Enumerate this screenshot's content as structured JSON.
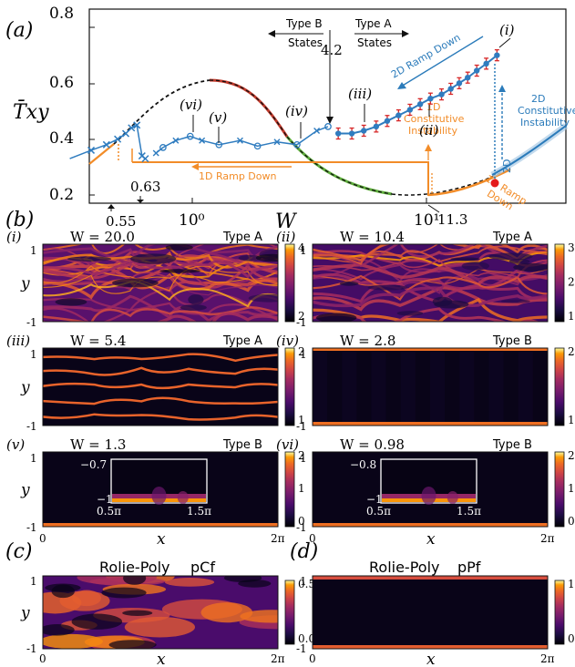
{
  "colors": {
    "orange": "#f28c28",
    "blue": "#2f7cbf",
    "red": "#d62728",
    "green": "#5fae3c",
    "darkred": "#c0392b",
    "black_dash": "#111111",
    "instab_blue": "#2b7bba"
  },
  "panel_a": {
    "label": "(a)",
    "ylabel": "T̄xy",
    "xlabel": "W",
    "y_ticks": [
      "0.2",
      "0.4",
      "0.6",
      "0.8"
    ],
    "x_ticks": [
      "10⁰",
      "10¹"
    ],
    "annot_063": "0.63",
    "annot_055": "0.55",
    "annot_42": "4.2",
    "annot_113": "11.3",
    "typeB_line1": "Type B",
    "typeB_line2": "States",
    "typeA_line1": "Type A",
    "typeA_line2": "States",
    "ramp2d": "2D Ramp Down",
    "constit2d_1": "2D",
    "constit2d_2": "Constitutive",
    "constit2d_3": "Instability",
    "constit1d_1": "1D",
    "constit1d_2": "Constitutive",
    "constit1d_3": "Instability",
    "ramp1d": "1D Ramp Down",
    "ramp1d_b1": "1D Ramp",
    "ramp1d_b2": "Down",
    "markers": [
      "(i)",
      "(ii)",
      "(iii)",
      "(iv)",
      "(v)",
      "(vi)"
    ]
  },
  "chart_data": {
    "type": "line",
    "x_scale": "log",
    "ylim": [
      0.2,
      0.9
    ],
    "xlabel": "W",
    "ylabel": "T̄xy",
    "series": [
      {
        "name": "2D Ramp Down",
        "x": [
          20.0,
          18.0,
          16.4,
          15.0,
          13.8,
          12.7,
          11.6,
          10.4,
          9.4,
          8.5,
          7.6,
          6.8,
          6.1,
          5.4,
          4.8,
          4.2
        ],
        "y": [
          0.7,
          0.67,
          0.645,
          0.62,
          0.6,
          0.58,
          0.56,
          0.545,
          0.525,
          0.505,
          0.485,
          0.465,
          0.445,
          0.43,
          0.42,
          0.42
        ]
      },
      {
        "name": "Type B",
        "x": [
          3.8,
          3.4,
          2.8,
          2.3,
          1.9,
          1.6,
          1.3,
          1.1,
          0.98,
          0.85,
          0.75,
          0.7
        ],
        "y": [
          0.445,
          0.43,
          0.38,
          0.39,
          0.375,
          0.395,
          0.38,
          0.395,
          0.41,
          0.395,
          0.37,
          0.35
        ]
      },
      {
        "name": "1D Ramp Down",
        "x": [
          0.3,
          0.37,
          0.43,
          0.48,
          0.52,
          0.55,
          0.58,
          0.61,
          0.63
        ],
        "y": [
          0.33,
          0.36,
          0.38,
          0.4,
          0.42,
          0.44,
          0.45,
          0.34,
          0.33
        ]
      },
      {
        "name": "1D Constitutive Instability",
        "x": [
          11.3
        ],
        "y": [
          0.33
        ]
      },
      {
        "name": "2D Constitutive Instability",
        "x": [
          20.0
        ],
        "y": [
          0.27
        ]
      }
    ]
  },
  "panel_b": {
    "label": "(b)",
    "heatmaps": [
      {
        "id": "i",
        "tag": "(i)",
        "w": "W = 20.0",
        "type": "Type A",
        "cb": [
          "4",
          "2"
        ],
        "pattern": "turb",
        "vmax": 4.5
      },
      {
        "id": "ii",
        "tag": "(ii)",
        "w": "W = 10.4",
        "type": "Type A",
        "cb": [
          "3",
          "2",
          "1"
        ],
        "pattern": "turb2",
        "vmax": 3.2
      },
      {
        "id": "iii",
        "tag": "(iii)",
        "w": "W = 5.4",
        "type": "Type A",
        "cb": [
          "2",
          "1"
        ],
        "pattern": "bands",
        "vmax": 2.5
      },
      {
        "id": "iv",
        "tag": "(iv)",
        "w": "W = 2.8",
        "type": "Type B",
        "cb": [
          "2",
          "1"
        ],
        "pattern": "wall",
        "vmax": 2.4
      },
      {
        "id": "v",
        "tag": "(v)",
        "w": "W = 1.3",
        "type": "Type B",
        "cb": [
          "2",
          "1",
          "0"
        ],
        "pattern": "thin",
        "vmax": 2.0
      },
      {
        "id": "vi",
        "tag": "(vi)",
        "w": "W = 0.98",
        "type": "Type B",
        "cb": [
          "2",
          "1",
          "0"
        ],
        "pattern": "thin",
        "vmax": 2.0
      }
    ],
    "inset_v": {
      "top": "−0.7",
      "bottom": "−1",
      "l": "0.5π",
      "r": "1.5π"
    },
    "inset_vi": {
      "top": "−0.8",
      "bottom": "−1",
      "l": "0.5π",
      "r": "1.5π"
    },
    "y_top": "1",
    "y_bot": "-1",
    "y_label": "y",
    "x_left": "0",
    "x_right": "2π",
    "x_label": "x"
  },
  "panel_c": {
    "label": "(c)",
    "title1": "Rolie-Poly",
    "title2": "pCf",
    "cb": [
      "0.5",
      "0.0"
    ]
  },
  "panel_d": {
    "label": "(d)",
    "title1": "Rolie-Poly",
    "title2": "pPf",
    "cb": [
      "1",
      "0"
    ]
  }
}
